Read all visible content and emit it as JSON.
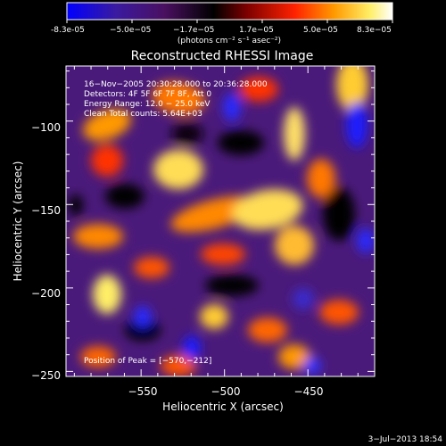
{
  "colorbar": {
    "ticks": [
      "-8.3e-05",
      "−5.0e−05",
      "−1.7e−05",
      "1.7e−05",
      "5.0e−05",
      "8.3e−05"
    ],
    "unit_label": "(photons cm⁻² s⁻¹ asec⁻²)"
  },
  "chart_data": {
    "type": "heatmap",
    "title": "Reconstructed RHESSI Image",
    "xlabel": "Heliocentric X (arcsec)",
    "ylabel": "Heliocentric Y (arcsec)",
    "xlim": [
      -595,
      -410
    ],
    "ylim": [
      -253,
      -67
    ],
    "xticks": [
      -550,
      -500,
      -450
    ],
    "xtick_labels": [
      "−550",
      "−500",
      "−450"
    ],
    "yticks": [
      -100,
      -150,
      -200,
      -250
    ],
    "ytick_labels": [
      "−100",
      "−150",
      "−200",
      "−250"
    ],
    "colorbar_range": [
      -8.3e-05,
      8.3e-05
    ],
    "colormap": [
      "#0000ff",
      "#5a1a8c",
      "#000000",
      "#8a0000",
      "#ff2200",
      "#ff9900",
      "#ffee66",
      "#ffffff"
    ],
    "annotations": [
      "16−Nov−2005 20:30:28.000 to 20:36:28.000",
      "Detectors: 4F 5F 6F 7F 8F, Att 0",
      "Energy Range: 12.0 − 25.0 keV",
      "Clean   Total counts: 5.64E+03"
    ],
    "peak_label": "Position of Peak = [−570,−212]",
    "peak": [
      -570,
      -212
    ]
  },
  "footer": {
    "date": "3−Jul−2013 18:54"
  }
}
